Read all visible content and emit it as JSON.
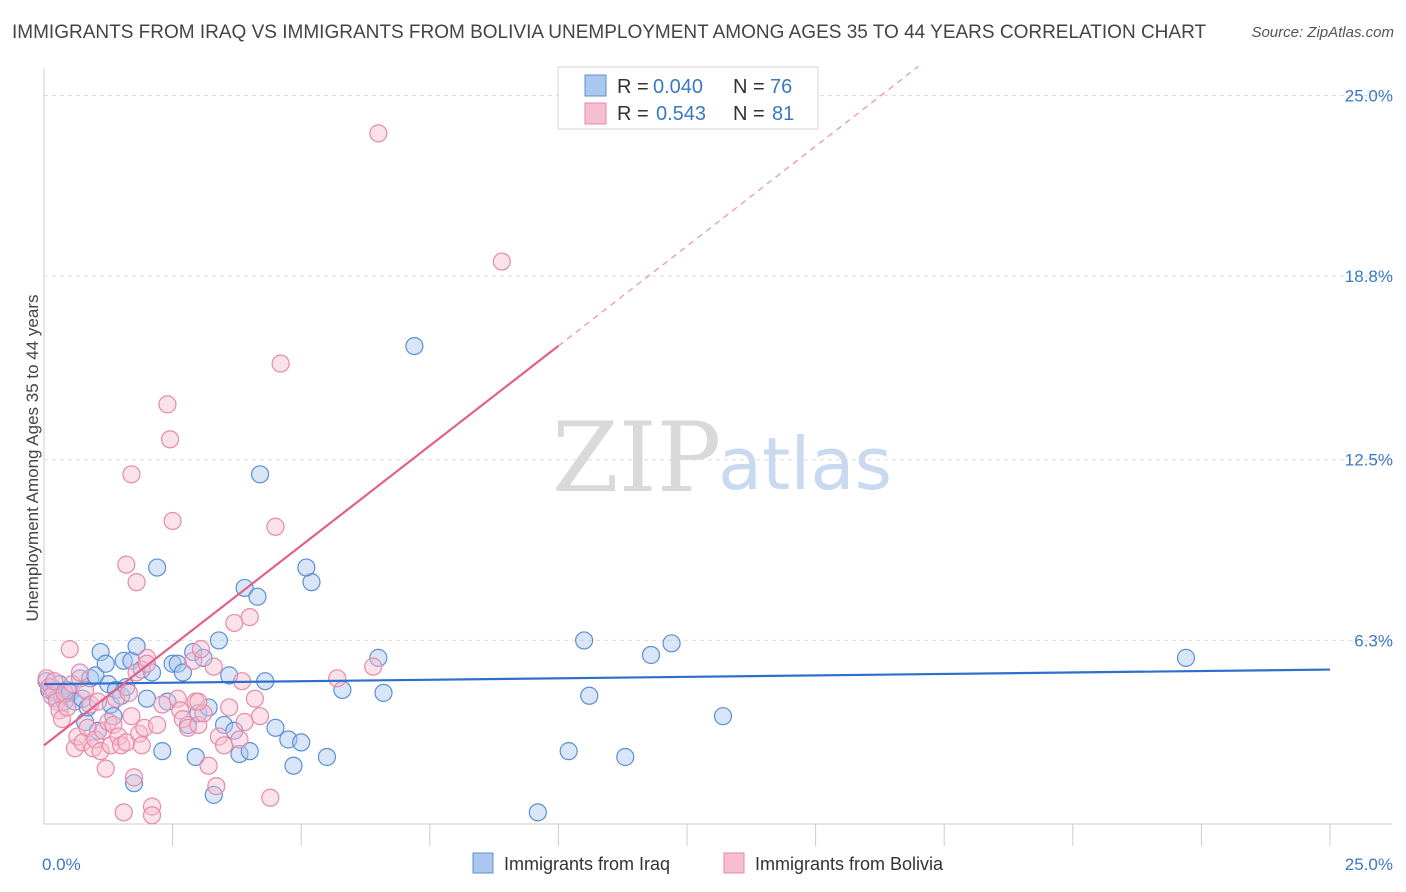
{
  "title": "IMMIGRANTS FROM IRAQ VS IMMIGRANTS FROM BOLIVIA UNEMPLOYMENT AMONG AGES 35 TO 44 YEARS CORRELATION CHART",
  "source": "Source: ZipAtlas.com",
  "watermark": {
    "zip": "ZIP",
    "atlas": "atlas"
  },
  "colors": {
    "iraq_fill": "#aac8ee",
    "iraq_stroke": "#5b8fd6",
    "iraq_line": "#2f6fcc",
    "bolivia_fill": "#f6bfd1",
    "bolivia_stroke": "#e889a8",
    "bolivia_line": "#e0608c",
    "grid": "#dddddd",
    "tick_label": "#3b78c4"
  },
  "legend": {
    "rows": [
      {
        "r_label": "R =",
        "r_value": "0.040",
        "n_label": "N =",
        "n_value": "76"
      },
      {
        "r_label": "R =",
        "r_value": "0.543",
        "n_label": "N =",
        "n_value": "81"
      }
    ]
  },
  "chart_data": {
    "type": "scatter",
    "title": "IMMIGRANTS FROM IRAQ VS IMMIGRANTS FROM BOLIVIA UNEMPLOYMENT AMONG AGES 35 TO 44 YEARS CORRELATION CHART",
    "xlabel": "",
    "ylabel": "Unemployment Among Ages 35 to 44 years",
    "xlim": [
      0,
      25
    ],
    "ylim": [
      0,
      25.6
    ],
    "x_tick_labels": [
      {
        "value": 0,
        "label": "0.0%"
      },
      {
        "value": 25,
        "label": "25.0%"
      }
    ],
    "y_tick_labels": [
      {
        "value": 6.3,
        "label": "6.3%"
      },
      {
        "value": 12.5,
        "label": "12.5%"
      },
      {
        "value": 18.8,
        "label": "18.8%"
      },
      {
        "value": 25.0,
        "label": "25.0%"
      }
    ],
    "x_minor_ticks": [
      2.5,
      5.0,
      7.5,
      10.0,
      12.5,
      15.0,
      17.5,
      20.0,
      22.5,
      25.0
    ],
    "series": [
      {
        "name": "Immigrants from Iraq",
        "R": 0.04,
        "N": 76,
        "trend": {
          "x": [
            0,
            25
          ],
          "y": [
            4.8,
            5.3
          ],
          "solid_to": 25
        },
        "points": [
          [
            0.05,
            4.9
          ],
          [
            0.1,
            4.6
          ],
          [
            0.15,
            4.7
          ],
          [
            0.2,
            4.5
          ],
          [
            0.25,
            4.3
          ],
          [
            0.3,
            4.8
          ],
          [
            0.35,
            4.4
          ],
          [
            0.4,
            4.2
          ],
          [
            0.45,
            4.6
          ],
          [
            0.5,
            4.5
          ],
          [
            0.6,
            4.2
          ],
          [
            0.7,
            5.0
          ],
          [
            0.75,
            4.3
          ],
          [
            0.8,
            3.5
          ],
          [
            0.85,
            4.0
          ],
          [
            0.9,
            5.0
          ],
          [
            1.0,
            5.1
          ],
          [
            1.05,
            3.2
          ],
          [
            1.1,
            5.9
          ],
          [
            1.2,
            5.5
          ],
          [
            1.25,
            4.8
          ],
          [
            1.3,
            4.1
          ],
          [
            1.35,
            3.7
          ],
          [
            1.4,
            4.6
          ],
          [
            1.5,
            4.4
          ],
          [
            1.55,
            5.6
          ],
          [
            1.6,
            4.7
          ],
          [
            1.7,
            5.6
          ],
          [
            1.8,
            6.1
          ],
          [
            1.75,
            1.4
          ],
          [
            1.9,
            5.3
          ],
          [
            2.0,
            4.3
          ],
          [
            2.1,
            5.2
          ],
          [
            2.2,
            8.8
          ],
          [
            2.3,
            2.5
          ],
          [
            2.4,
            4.2
          ],
          [
            2.5,
            5.5
          ],
          [
            2.6,
            5.5
          ],
          [
            2.7,
            5.2
          ],
          [
            2.8,
            3.4
          ],
          [
            2.9,
            5.9
          ],
          [
            2.95,
            2.3
          ],
          [
            3.0,
            3.8
          ],
          [
            3.1,
            5.7
          ],
          [
            3.2,
            4.0
          ],
          [
            3.3,
            1.0
          ],
          [
            3.4,
            6.3
          ],
          [
            3.5,
            3.4
          ],
          [
            3.6,
            5.1
          ],
          [
            3.7,
            3.2
          ],
          [
            3.8,
            2.4
          ],
          [
            3.9,
            8.1
          ],
          [
            4.0,
            2.5
          ],
          [
            4.15,
            7.8
          ],
          [
            4.2,
            12.0
          ],
          [
            4.3,
            4.9
          ],
          [
            4.5,
            3.3
          ],
          [
            4.75,
            2.9
          ],
          [
            4.85,
            2.0
          ],
          [
            5.0,
            2.8
          ],
          [
            5.2,
            8.3
          ],
          [
            5.1,
            8.8
          ],
          [
            5.5,
            2.3
          ],
          [
            5.8,
            4.6
          ],
          [
            6.5,
            5.7
          ],
          [
            6.6,
            4.5
          ],
          [
            7.2,
            16.4
          ],
          [
            9.6,
            0.4
          ],
          [
            10.2,
            2.5
          ],
          [
            10.5,
            6.3
          ],
          [
            10.6,
            4.4
          ],
          [
            11.3,
            2.3
          ],
          [
            11.8,
            5.8
          ],
          [
            12.2,
            6.2
          ],
          [
            13.2,
            3.7
          ],
          [
            22.2,
            5.7
          ]
        ]
      },
      {
        "name": "Immigrants from Bolivia",
        "R": 0.543,
        "N": 81,
        "trend": {
          "x": [
            0,
            17
          ],
          "y": [
            2.7,
            26.0
          ],
          "solid_to": 10.0
        },
        "points": [
          [
            0.05,
            5.0
          ],
          [
            0.1,
            4.7
          ],
          [
            0.15,
            4.4
          ],
          [
            0.2,
            4.9
          ],
          [
            0.25,
            4.2
          ],
          [
            0.3,
            3.9
          ],
          [
            0.35,
            3.6
          ],
          [
            0.4,
            4.5
          ],
          [
            0.45,
            4.0
          ],
          [
            0.5,
            6.0
          ],
          [
            0.55,
            4.8
          ],
          [
            0.6,
            2.6
          ],
          [
            0.65,
            3.0
          ],
          [
            0.7,
            5.2
          ],
          [
            0.75,
            2.8
          ],
          [
            0.8,
            4.6
          ],
          [
            0.85,
            3.3
          ],
          [
            0.9,
            4.1
          ],
          [
            0.95,
            2.6
          ],
          [
            1.0,
            2.9
          ],
          [
            1.05,
            4.2
          ],
          [
            1.1,
            2.5
          ],
          [
            1.15,
            3.2
          ],
          [
            1.2,
            1.9
          ],
          [
            1.25,
            3.5
          ],
          [
            1.3,
            2.7
          ],
          [
            1.35,
            3.4
          ],
          [
            1.4,
            4.3
          ],
          [
            1.45,
            3.0
          ],
          [
            1.5,
            2.7
          ],
          [
            1.55,
            0.4
          ],
          [
            1.6,
            2.8
          ],
          [
            1.65,
            4.5
          ],
          [
            1.7,
            3.7
          ],
          [
            1.75,
            1.6
          ],
          [
            1.8,
            5.2
          ],
          [
            1.85,
            3.1
          ],
          [
            1.9,
            2.7
          ],
          [
            1.95,
            3.3
          ],
          [
            2.0,
            5.7
          ],
          [
            1.6,
            8.9
          ],
          [
            1.7,
            12.0
          ],
          [
            1.8,
            8.3
          ],
          [
            2.0,
            5.5
          ],
          [
            2.1,
            0.6
          ],
          [
            2.2,
            3.4
          ],
          [
            2.3,
            4.1
          ],
          [
            2.4,
            14.4
          ],
          [
            2.45,
            13.2
          ],
          [
            2.5,
            10.4
          ],
          [
            2.6,
            4.3
          ],
          [
            2.65,
            3.9
          ],
          [
            2.7,
            3.6
          ],
          [
            2.8,
            3.3
          ],
          [
            2.9,
            5.6
          ],
          [
            2.95,
            4.2
          ],
          [
            3.0,
            3.4
          ],
          [
            3.05,
            6.0
          ],
          [
            3.1,
            3.8
          ],
          [
            3.2,
            2.0
          ],
          [
            3.3,
            5.4
          ],
          [
            3.35,
            1.3
          ],
          [
            3.4,
            3.0
          ],
          [
            3.5,
            2.7
          ],
          [
            3.6,
            4.0
          ],
          [
            3.7,
            6.9
          ],
          [
            3.8,
            2.9
          ],
          [
            3.85,
            4.9
          ],
          [
            3.9,
            3.5
          ],
          [
            4.0,
            7.1
          ],
          [
            4.1,
            4.3
          ],
          [
            4.2,
            3.7
          ],
          [
            4.4,
            0.9
          ],
          [
            4.5,
            10.2
          ],
          [
            4.6,
            15.8
          ],
          [
            5.7,
            5.0
          ],
          [
            6.4,
            5.4
          ],
          [
            6.5,
            23.7
          ],
          [
            8.9,
            19.3
          ],
          [
            2.1,
            0.3
          ],
          [
            3.0,
            4.2
          ]
        ]
      }
    ]
  }
}
